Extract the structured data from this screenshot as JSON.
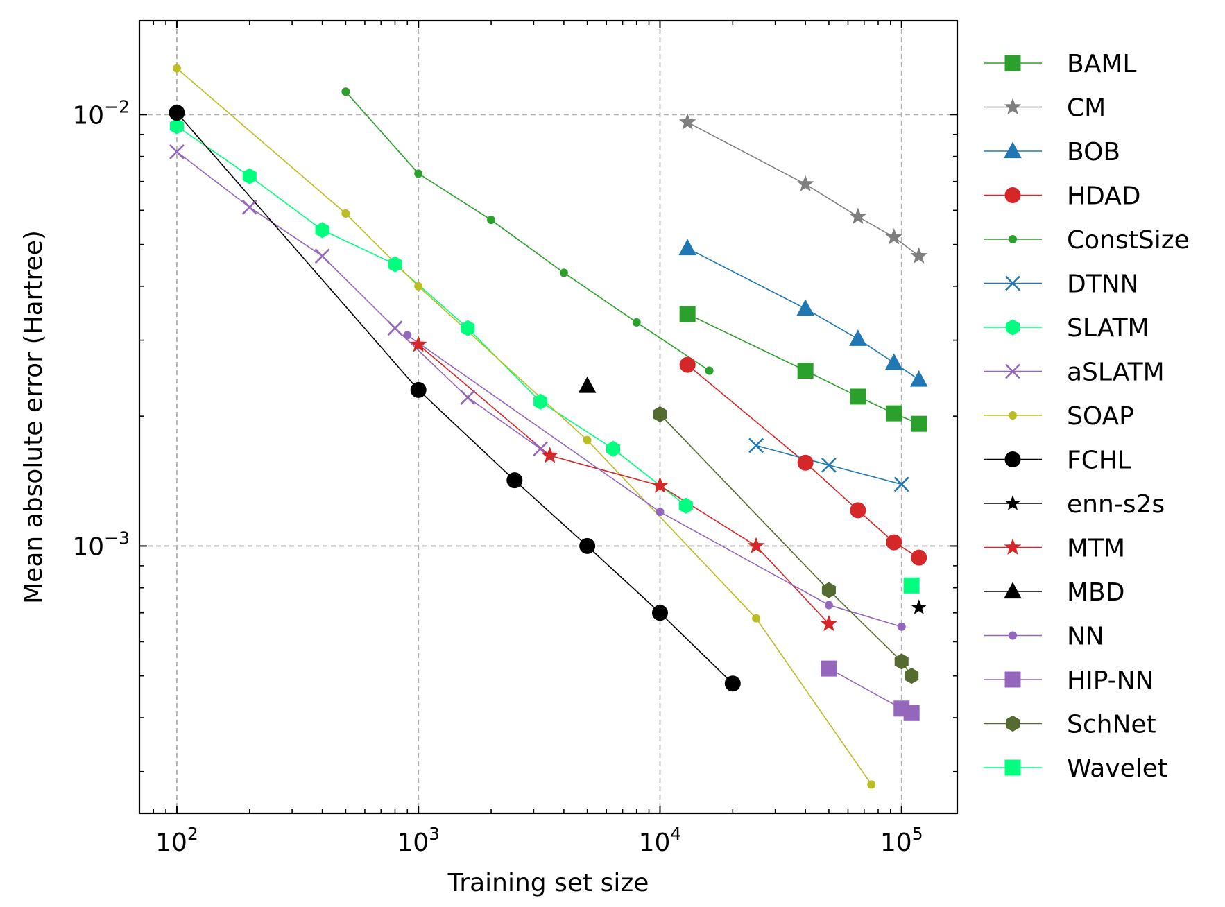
{
  "chart_data": {
    "type": "line",
    "title": "",
    "xlabel": "Training set size",
    "ylabel": "Mean absolute error (Hartree)",
    "xscale": "log",
    "yscale": "log",
    "xlim": [
      70,
      170000
    ],
    "ylim": [
      0.00024,
      0.0165
    ],
    "xticks": [
      {
        "value": 100,
        "base": "10",
        "exp": "2"
      },
      {
        "value": 1000,
        "base": "10",
        "exp": "3"
      },
      {
        "value": 10000,
        "base": "10",
        "exp": "4"
      },
      {
        "value": 100000,
        "base": "10",
        "exp": "5"
      }
    ],
    "yticks": [
      {
        "value": 0.001,
        "base": "10",
        "exp": "−3"
      },
      {
        "value": 0.01,
        "base": "10",
        "exp": "−2"
      }
    ],
    "grid": true,
    "legend": "outside-right",
    "series": [
      {
        "name": "BAML",
        "color": "#2ca02c",
        "marker": "square",
        "size": 22,
        "x": [
          13000,
          40000,
          66000,
          93000,
          118000
        ],
        "y": [
          0.00345,
          0.00255,
          0.00222,
          0.00203,
          0.00192
        ]
      },
      {
        "name": "CM",
        "color": "#7f7f7f",
        "marker": "star",
        "size": 22,
        "x": [
          13000,
          40000,
          66000,
          93000,
          118000
        ],
        "y": [
          0.0096,
          0.0069,
          0.0058,
          0.0052,
          0.0047
        ]
      },
      {
        "name": "BOB",
        "color": "#1f77b4",
        "marker": "triangle",
        "size": 24,
        "x": [
          13000,
          40000,
          66000,
          93000,
          118000
        ],
        "y": [
          0.0049,
          0.00355,
          0.00302,
          0.00266,
          0.00243
        ]
      },
      {
        "name": "HDAD",
        "color": "#d62728",
        "marker": "circle",
        "size": 22,
        "x": [
          13000,
          40000,
          66000,
          93000,
          118000
        ],
        "y": [
          0.00263,
          0.00156,
          0.00121,
          0.00102,
          0.00094
        ]
      },
      {
        "name": "ConstSize",
        "color": "#2ca02c",
        "marker": "circle",
        "size": 11,
        "x": [
          500,
          1000,
          2000,
          4000,
          8000,
          16000
        ],
        "y": [
          0.0113,
          0.0073,
          0.0057,
          0.0043,
          0.0033,
          0.00255
        ]
      },
      {
        "name": "DTNN",
        "color": "#1f77b4",
        "marker": "x",
        "size": 20,
        "x": [
          25000,
          50000,
          100000
        ],
        "y": [
          0.00171,
          0.00154,
          0.00139
        ]
      },
      {
        "name": "SLATM",
        "color": "#00ff7f",
        "marker": "hexagon",
        "size": 22,
        "x": [
          100,
          200,
          400,
          800,
          1600,
          3200,
          6400,
          12800
        ],
        "y": [
          0.0094,
          0.0072,
          0.0054,
          0.0045,
          0.0032,
          0.00216,
          0.00168,
          0.00124
        ]
      },
      {
        "name": "aSLATM",
        "color": "#9467bd",
        "marker": "x",
        "size": 20,
        "x": [
          100,
          200,
          400,
          800,
          1600,
          3200
        ],
        "y": [
          0.0082,
          0.0061,
          0.0047,
          0.0032,
          0.00221,
          0.00168
        ]
      },
      {
        "name": "SOAP",
        "color": "#bcbd22",
        "marker": "circle",
        "size": 11,
        "x": [
          100,
          500,
          1000,
          5000,
          25000,
          75000
        ],
        "y": [
          0.0128,
          0.0059,
          0.004,
          0.00176,
          0.00068,
          0.00028
        ]
      },
      {
        "name": "FCHL",
        "color": "#000000",
        "marker": "circle",
        "size": 22,
        "x": [
          100,
          1000,
          2500,
          5000,
          10000,
          20000
        ],
        "y": [
          0.0101,
          0.0023,
          0.00142,
          0.001,
          0.0007,
          0.00048
        ]
      },
      {
        "name": "enn-s2s",
        "color": "#000000",
        "marker": "star",
        "size": 20,
        "x": [
          118000
        ],
        "y": [
          0.00072
        ]
      },
      {
        "name": "MTM",
        "color": "#d62728",
        "marker": "star",
        "size": 22,
        "x": [
          1000,
          3500,
          10000,
          25000,
          50000
        ],
        "y": [
          0.00293,
          0.00162,
          0.00138,
          0.001,
          0.00066
        ]
      },
      {
        "name": "MBD",
        "color": "#000000",
        "marker": "triangle",
        "size": 24,
        "x": [
          5000
        ],
        "y": [
          0.00235
        ]
      },
      {
        "name": "NN",
        "color": "#9467bd",
        "marker": "circle",
        "size": 11,
        "x": [
          900,
          10000,
          50000,
          100000
        ],
        "y": [
          0.00308,
          0.0012,
          0.00073,
          0.00065
        ]
      },
      {
        "name": "HIP-NN",
        "color": "#9467bd",
        "marker": "square",
        "size": 22,
        "x": [
          50000,
          100000,
          110000
        ],
        "y": [
          0.00052,
          0.00042,
          0.00041
        ]
      },
      {
        "name": "SchNet",
        "color": "#556b2f",
        "marker": "hexagon",
        "size": 22,
        "x": [
          10000,
          50000,
          100000,
          110000
        ],
        "y": [
          0.00202,
          0.00079,
          0.00054,
          0.0005
        ]
      },
      {
        "name": "Wavelet",
        "color": "#00ff7f",
        "marker": "square",
        "size": 22,
        "x": [
          110000
        ],
        "y": [
          0.00081
        ]
      }
    ]
  }
}
